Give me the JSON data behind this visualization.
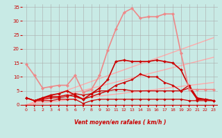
{
  "bg_color": "#c8eae5",
  "grid_color": "#aaaaaa",
  "xlabel": "Vent moyen/en rafales ( km/h )",
  "xlabel_color": "#cc0000",
  "tick_color": "#cc0000",
  "arrow_color": "#cc0000",
  "xlim": [
    -0.5,
    23.5
  ],
  "ylim": [
    -1,
    36
  ],
  "yticks": [
    0,
    5,
    10,
    15,
    20,
    25,
    30,
    35
  ],
  "xticks": [
    0,
    1,
    2,
    3,
    4,
    5,
    6,
    7,
    8,
    9,
    10,
    11,
    12,
    13,
    14,
    15,
    16,
    17,
    18,
    19,
    20,
    21,
    22,
    23
  ],
  "series": [
    {
      "x": [
        0,
        1,
        2,
        3,
        4,
        5,
        6,
        7,
        8,
        9,
        10,
        11,
        12,
        13,
        14,
        15,
        16,
        17,
        18,
        19,
        20,
        21,
        22,
        23
      ],
      "y": [
        2.5,
        1.5,
        1.5,
        1.5,
        2,
        2,
        2,
        0.5,
        1.5,
        2,
        2,
        2,
        2,
        2,
        2,
        2,
        2,
        2,
        2,
        2,
        1.5,
        1.5,
        1.5,
        1.5
      ],
      "color": "#cc0000",
      "marker": "D",
      "markersize": 1.8,
      "linewidth": 0.9,
      "alpha": 1.0
    },
    {
      "x": [
        0,
        1,
        2,
        3,
        4,
        5,
        6,
        7,
        8,
        9,
        10,
        11,
        12,
        13,
        14,
        15,
        16,
        17,
        18,
        19,
        20,
        21,
        22,
        23
      ],
      "y": [
        2.5,
        1.5,
        2,
        2.5,
        2.5,
        3,
        4,
        3.5,
        4,
        5,
        5,
        5.5,
        5.5,
        5,
        5,
        5,
        5,
        5,
        5,
        5,
        6,
        2,
        2,
        1.5
      ],
      "color": "#cc0000",
      "marker": "D",
      "markersize": 1.8,
      "linewidth": 0.9,
      "alpha": 1.0
    },
    {
      "x": [
        0,
        1,
        2,
        3,
        4,
        5,
        6,
        7,
        8,
        9,
        10,
        11,
        12,
        13,
        14,
        15,
        16,
        17,
        18,
        19,
        20,
        21,
        22,
        23
      ],
      "y": [
        2.5,
        1.5,
        2.5,
        3,
        3,
        3.5,
        3,
        2,
        3,
        4,
        5,
        7,
        8,
        9,
        11,
        10,
        10,
        8,
        7,
        5,
        7,
        2.5,
        2,
        1.5
      ],
      "color": "#cc0000",
      "marker": "D",
      "markersize": 1.8,
      "linewidth": 1.0,
      "alpha": 1.0
    },
    {
      "x": [
        0,
        1,
        2,
        3,
        4,
        5,
        6,
        7,
        8,
        9,
        10,
        11,
        12,
        13,
        14,
        15,
        16,
        17,
        18,
        19,
        20,
        21,
        22,
        23
      ],
      "y": [
        2.5,
        1.5,
        2.5,
        3.5,
        4,
        5,
        3.5,
        2,
        4,
        6,
        9,
        15.5,
        16,
        15.5,
        15.5,
        15.5,
        16,
        15.5,
        15,
        12.5,
        6.5,
        2,
        2,
        1.5
      ],
      "color": "#cc0000",
      "marker": "D",
      "markersize": 2.0,
      "linewidth": 1.2,
      "alpha": 1.0
    },
    {
      "x": [
        0,
        1,
        2,
        3,
        4,
        5,
        6,
        7,
        8,
        9,
        10,
        11,
        12,
        13,
        14,
        15,
        16,
        17,
        18,
        19,
        20,
        21,
        22,
        23
      ],
      "y": [
        14.5,
        10.5,
        6,
        6.5,
        7,
        7,
        10.5,
        4.5,
        5.5,
        10.5,
        19.5,
        27,
        33,
        34.5,
        31,
        31.5,
        31.5,
        32.5,
        32.5,
        18.5,
        5.5,
        5.5,
        5.5,
        5.5
      ],
      "color": "#ee8888",
      "marker": "D",
      "markersize": 2.2,
      "linewidth": 1.2,
      "alpha": 1.0
    },
    {
      "x": [
        0,
        23
      ],
      "y": [
        0,
        8
      ],
      "color": "#ffaaaa",
      "marker": null,
      "linewidth": 1.0,
      "alpha": 1.0
    },
    {
      "x": [
        0,
        23
      ],
      "y": [
        0,
        17
      ],
      "color": "#ffaaaa",
      "marker": null,
      "linewidth": 1.0,
      "alpha": 1.0
    },
    {
      "x": [
        0,
        23
      ],
      "y": [
        0,
        24
      ],
      "color": "#ffaaaa",
      "marker": null,
      "linewidth": 1.0,
      "alpha": 1.0
    }
  ]
}
